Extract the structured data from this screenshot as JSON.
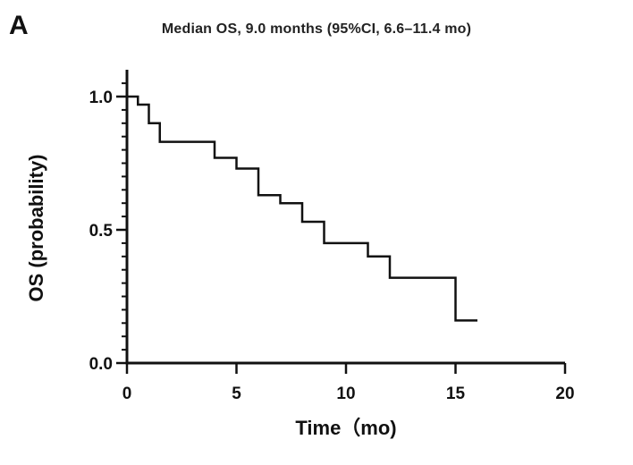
{
  "panel_label": "A",
  "chart_data": {
    "type": "line",
    "subtype": "kaplan-meier step",
    "title": "Median OS, 9.0 months (95%CI, 6.6–11.4 mo)",
    "xlabel": "Time（mo)",
    "ylabel": "OS (probability)",
    "xlim": [
      0,
      20
    ],
    "ylim": [
      0,
      1
    ],
    "xticks": [
      0,
      5,
      10,
      15,
      20
    ],
    "xtick_labels": [
      "0",
      "5",
      "10",
      "15",
      "20"
    ],
    "yticks": [
      0,
      0.5,
      1
    ],
    "ytick_labels": [
      "0.0",
      "0.5",
      "1.0"
    ],
    "y_minor_tick_step": 0.05,
    "grid": false,
    "color": "#111111",
    "series": [
      {
        "x": [
          0,
          0.5,
          1,
          1.5,
          4,
          5,
          6,
          7,
          8,
          9,
          11,
          12,
          15,
          16
        ],
        "y": [
          1.0,
          0.97,
          0.9,
          0.83,
          0.77,
          0.73,
          0.63,
          0.6,
          0.53,
          0.45,
          0.4,
          0.32,
          0.16,
          0.16
        ]
      }
    ]
  }
}
